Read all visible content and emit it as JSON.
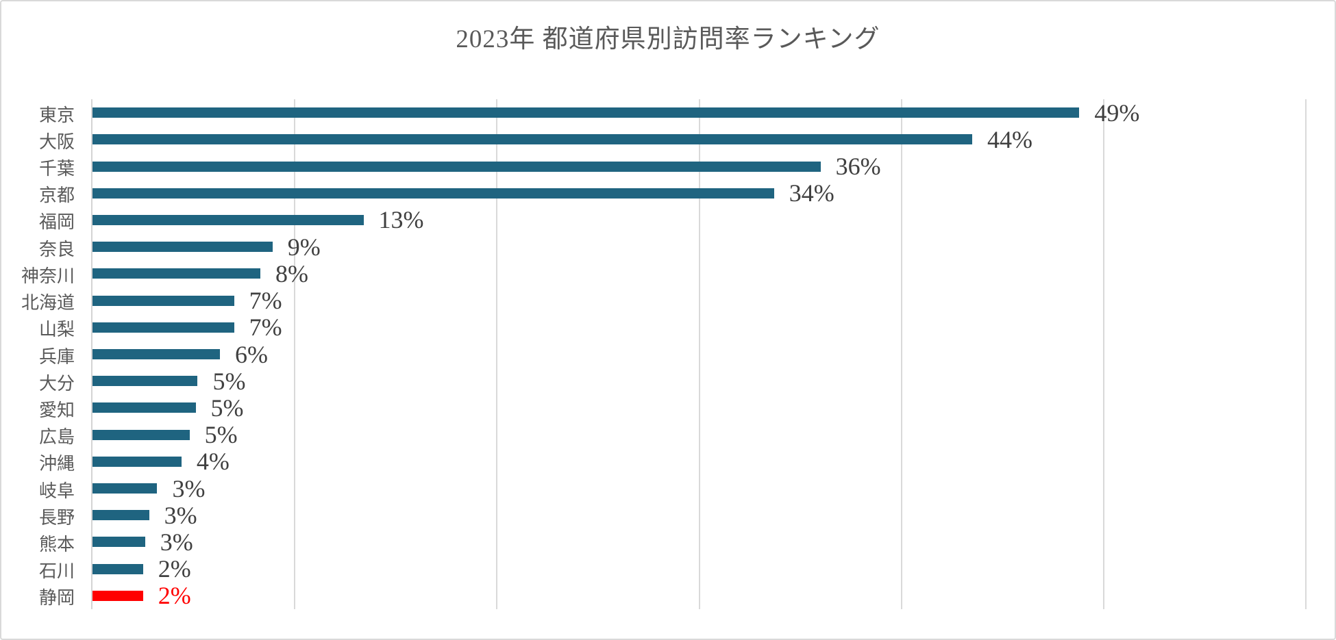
{
  "page": {
    "background": "#ffffff",
    "border_color": "#d9d9d9"
  },
  "chart_data": {
    "type": "bar",
    "orientation": "horizontal",
    "title": "2023年 都道府県別訪問率ランキング",
    "xlabel": "",
    "ylabel": "",
    "xlim": [
      0,
      60
    ],
    "gridline_step": 10,
    "grid": true,
    "legend_position": "none",
    "categories": [
      "東京",
      "大阪",
      "千葉",
      "京都",
      "福岡",
      "奈良",
      "神奈川",
      "北海道",
      "山梨",
      "兵庫",
      "大分",
      "愛知",
      "広島",
      "沖縄",
      "岐阜",
      "長野",
      "熊本",
      "石川",
      "静岡"
    ],
    "values": [
      49,
      44,
      36,
      34,
      13,
      9,
      8,
      7,
      7,
      6,
      5,
      5,
      5,
      4,
      3,
      3,
      3,
      2,
      2
    ],
    "value_labels": [
      "49%",
      "44%",
      "36%",
      "34%",
      "13%",
      "9%",
      "8%",
      "7%",
      "7%",
      "6%",
      "5%",
      "5%",
      "5%",
      "4%",
      "3%",
      "3%",
      "3%",
      "2%",
      "2%"
    ],
    "bar_lengths_pct": [
      48.8,
      43.5,
      36.0,
      33.7,
      13.4,
      8.9,
      8.3,
      7.0,
      7.0,
      6.3,
      5.2,
      5.1,
      4.8,
      4.4,
      3.2,
      2.8,
      2.6,
      2.5,
      2.5
    ],
    "highlight_index": 18,
    "colors": {
      "bar": "#1f6480",
      "highlight_bar": "#ff0000",
      "value_label": "#404040",
      "highlight_value_label": "#ff0000",
      "category_label": "#595959",
      "title": "#595959",
      "gridline": "#d9d9d9",
      "axis": "#d4d4d4",
      "background": "#ffffff"
    }
  }
}
